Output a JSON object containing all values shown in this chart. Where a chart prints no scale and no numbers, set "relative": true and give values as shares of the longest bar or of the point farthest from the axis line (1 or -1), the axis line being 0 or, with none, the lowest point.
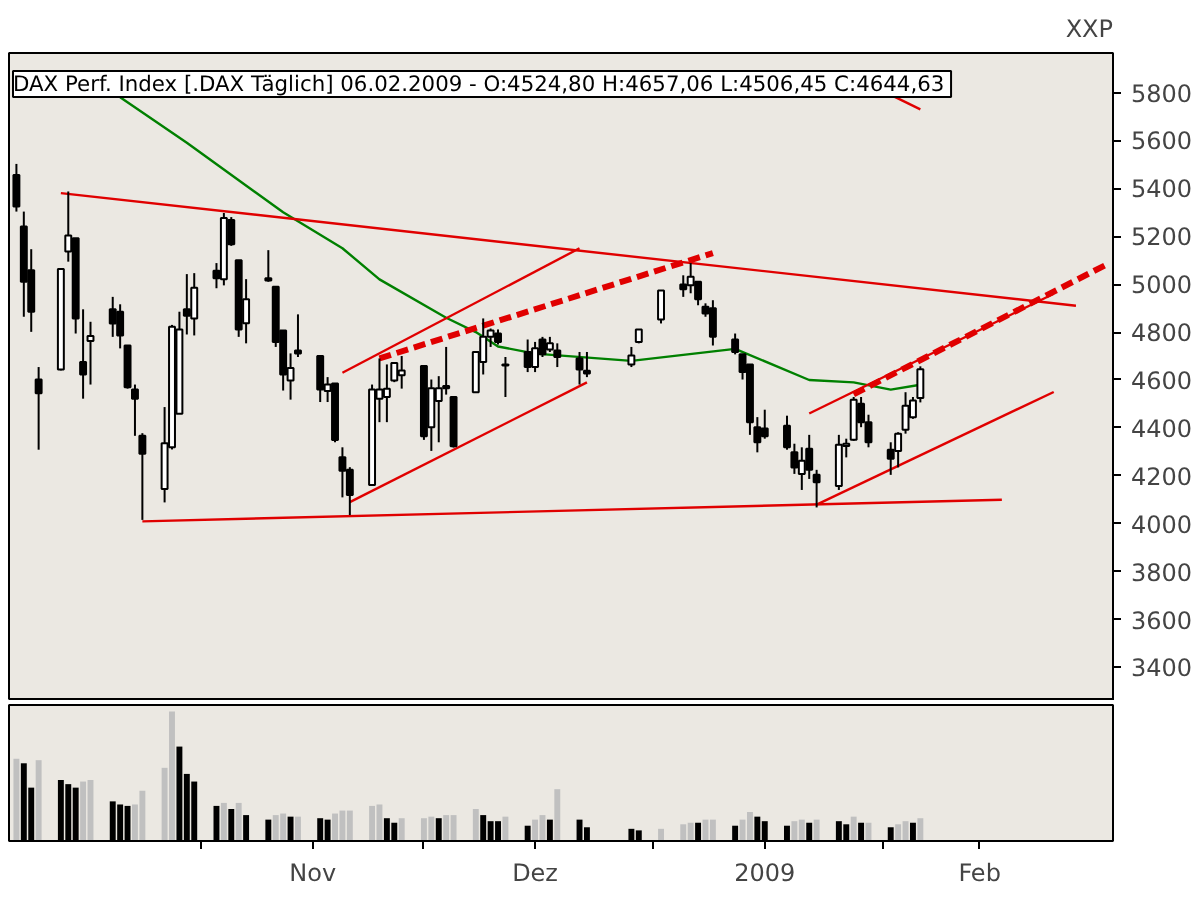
{
  "chart_data": [
    {
      "type": "candlestick",
      "title": "DAX Perf. Index [.DAX  Täglich] 06.02.2009 - O:4524,80 H:4657,06 L:4506,45 C:4644,63",
      "ylabel": "XXP",
      "x": [
        "2008-10-07",
        "2008-10-08",
        "2008-10-09",
        "2008-10-10",
        "2008-10-13",
        "2008-10-14",
        "2008-10-15",
        "2008-10-16",
        "2008-10-17",
        "2008-10-20",
        "2008-10-21",
        "2008-10-22",
        "2008-10-23",
        "2008-10-24",
        "2008-10-27",
        "2008-10-28",
        "2008-10-29",
        "2008-10-30",
        "2008-10-31",
        "2008-11-03",
        "2008-11-04",
        "2008-11-05",
        "2008-11-06",
        "2008-11-07",
        "2008-11-10",
        "2008-11-11",
        "2008-11-12",
        "2008-11-13",
        "2008-11-14",
        "2008-11-17",
        "2008-11-18",
        "2008-11-19",
        "2008-11-20",
        "2008-11-21",
        "2008-11-24",
        "2008-11-25",
        "2008-11-26",
        "2008-11-27",
        "2008-11-28",
        "2008-12-01",
        "2008-12-02",
        "2008-12-03",
        "2008-12-04",
        "2008-12-05",
        "2008-12-08",
        "2008-12-09",
        "2008-12-10",
        "2008-12-11",
        "2008-12-12",
        "2008-12-15",
        "2008-12-16",
        "2008-12-17",
        "2008-12-18",
        "2008-12-19",
        "2008-12-22",
        "2008-12-23",
        "2008-12-29",
        "2008-12-30",
        "2009-01-02",
        "2009-01-05",
        "2009-01-06",
        "2009-01-07",
        "2009-01-08",
        "2009-01-09",
        "2009-01-12",
        "2009-01-13",
        "2009-01-14",
        "2009-01-15",
        "2009-01-16",
        "2009-01-19",
        "2009-01-20",
        "2009-01-21",
        "2009-01-22",
        "2009-01-23",
        "2009-01-26",
        "2009-01-27",
        "2009-01-28",
        "2009-01-29",
        "2009-01-30",
        "2009-02-02",
        "2009-02-03",
        "2009-02-04",
        "2009-02-05",
        "2009-02-06"
      ],
      "ohlc": [
        [
          5456,
          5502,
          5303,
          5324
        ],
        [
          5241,
          5303,
          4864,
          5010
        ],
        [
          5058,
          5146,
          4801,
          4885
        ],
        [
          4602,
          4654,
          4309,
          4545
        ],
        [
          4644,
          5063,
          4640,
          5063
        ],
        [
          5136,
          5387,
          5094,
          5203
        ],
        [
          5192,
          5192,
          4794,
          4857
        ],
        [
          4675,
          4895,
          4522,
          4623
        ],
        [
          4763,
          4843,
          4581,
          4784
        ],
        [
          4895,
          4947,
          4780,
          4836
        ],
        [
          4885,
          4916,
          4732,
          4786
        ],
        [
          4744,
          4744,
          4564,
          4570
        ],
        [
          4560,
          4581,
          4367,
          4522
        ],
        [
          4367,
          4378,
          4016,
          4292
        ],
        [
          4145,
          4487,
          4089,
          4336
        ],
        [
          4319,
          4830,
          4310,
          4822
        ],
        [
          4459,
          4885,
          4459,
          4811
        ],
        [
          4895,
          5042,
          4790,
          4868
        ],
        [
          4857,
          5046,
          4786,
          4985
        ],
        [
          5056,
          5088,
          4983,
          5025
        ],
        [
          5021,
          5297,
          4995,
          5276
        ],
        [
          5268,
          5280,
          5160,
          5167
        ],
        [
          5100,
          5100,
          4780,
          4811
        ],
        [
          4837,
          5021,
          4753,
          4937
        ],
        [
          5025,
          5142,
          5010,
          5015
        ],
        [
          4989,
          4989,
          4738,
          4759
        ],
        [
          4807,
          4807,
          4556,
          4623
        ],
        [
          4598,
          4711,
          4518,
          4650
        ],
        [
          4723,
          4874,
          4696,
          4711
        ],
        [
          4700,
          4700,
          4508,
          4560
        ],
        [
          4554,
          4612,
          4508,
          4581
        ],
        [
          4585,
          4585,
          4340,
          4350
        ],
        [
          4277,
          4319,
          4110,
          4221
        ],
        [
          4225,
          4236,
          4036,
          4120
        ],
        [
          4162,
          4581,
          4162,
          4560
        ],
        [
          4522,
          4690,
          4424,
          4560
        ],
        [
          4529,
          4665,
          4424,
          4563
        ],
        [
          4598,
          4671,
          4591,
          4671
        ],
        [
          4620,
          4700,
          4564,
          4640
        ],
        [
          4658,
          4658,
          4350,
          4365
        ],
        [
          4403,
          4602,
          4304,
          4566
        ],
        [
          4512,
          4616,
          4340,
          4566
        ],
        [
          4575,
          4738,
          4539,
          4566
        ],
        [
          4529,
          4529,
          4318,
          4323
        ],
        [
          4549,
          4717,
          4549,
          4717
        ],
        [
          4675,
          4857,
          4623,
          4780
        ],
        [
          4780,
          4815,
          4738,
          4807
        ],
        [
          4794,
          4811,
          4748,
          4759
        ],
        [
          4665,
          4696,
          4529,
          4660
        ],
        [
          4717,
          4769,
          4633,
          4654
        ],
        [
          4654,
          4759,
          4633,
          4732
        ],
        [
          4769,
          4780,
          4696,
          4707
        ],
        [
          4727,
          4780,
          4717,
          4753
        ],
        [
          4723,
          4753,
          4654,
          4696
        ],
        [
          4690,
          4717,
          4581,
          4644
        ],
        [
          4639,
          4717,
          4612,
          4627
        ],
        [
          4665,
          4738,
          4654,
          4702
        ],
        [
          4759,
          4811,
          4753,
          4811
        ],
        [
          4853,
          4974,
          4836,
          4974
        ],
        [
          4999,
          5037,
          4947,
          4979
        ],
        [
          4995,
          5088,
          4962,
          5031
        ],
        [
          5010,
          5010,
          4912,
          4937
        ],
        [
          4906,
          4920,
          4864,
          4878
        ],
        [
          4899,
          4933,
          4744,
          4780
        ],
        [
          4769,
          4794,
          4707,
          4717
        ],
        [
          4707,
          4707,
          4602,
          4633
        ],
        [
          4665,
          4665,
          4371,
          4424
        ],
        [
          4403,
          4445,
          4298,
          4340
        ],
        [
          4397,
          4476,
          4355,
          4365
        ],
        [
          4409,
          4451,
          4309,
          4319
        ],
        [
          4298,
          4334,
          4208,
          4235
        ],
        [
          4208,
          4319,
          4141,
          4263
        ],
        [
          4313,
          4371,
          4187,
          4225
        ],
        [
          4204,
          4225,
          4068,
          4173
        ],
        [
          4158,
          4371,
          4141,
          4330
        ],
        [
          4324,
          4355,
          4277,
          4334
        ],
        [
          4351,
          4529,
          4346,
          4518
        ],
        [
          4501,
          4529,
          4403,
          4424
        ],
        [
          4424,
          4455,
          4319,
          4340
        ],
        [
          4309,
          4340,
          4204,
          4271
        ],
        [
          4304,
          4382,
          4235,
          4376
        ],
        [
          4392,
          4549,
          4376,
          4493
        ],
        [
          4445,
          4529,
          4438,
          4514
        ],
        [
          4524.8,
          4657.06,
          4506.45,
          4644.63
        ]
      ],
      "series": [
        {
          "type": "line",
          "color": "#008000",
          "x": [
            "2008-10-21",
            "2008-10-30",
            "2008-11-12",
            "2008-11-20",
            "2008-11-25",
            "2008-12-04",
            "2008-12-08",
            "2008-12-11",
            "2008-12-16",
            "2008-12-29",
            "2009-01-12",
            "2009-01-22",
            "2009-01-28",
            "2009-02-02",
            "2009-02-06"
          ],
          "values": [
            5780,
            5590,
            5300,
            5150,
            5020,
            4860,
            4800,
            4740,
            4710,
            4680,
            4730,
            4600,
            4590,
            4560,
            4580
          ]
        },
        {
          "type": "line",
          "color": "#e00000",
          "x": [
            "2008-10-13",
            "2009-02-27"
          ],
          "values": [
            5380,
            4910
          ]
        },
        {
          "type": "line",
          "color": "#e00000",
          "x": [
            "2009-02-02",
            "2009-02-06"
          ],
          "values": [
            5790,
            5730
          ]
        },
        {
          "type": "line",
          "color": "#e00000",
          "x": [
            "2008-10-24",
            "2009-02-17"
          ],
          "values": [
            4010,
            4100
          ]
        },
        {
          "type": "line",
          "color": "#e00000",
          "x": [
            "2008-11-20",
            "2008-12-22"
          ],
          "values": [
            4630,
            5150
          ]
        },
        {
          "type": "line",
          "color": "#e00000",
          "line_style": "dashed",
          "x": [
            "2008-11-25",
            "2009-01-09"
          ],
          "values": [
            4690,
            5130
          ]
        },
        {
          "type": "line",
          "color": "#e00000",
          "x": [
            "2008-11-21",
            "2008-12-23"
          ],
          "values": [
            4090,
            4590
          ]
        },
        {
          "type": "line",
          "color": "#e00000",
          "x": [
            "2009-01-22",
            "2009-02-24"
          ],
          "values": [
            4460,
            4960
          ]
        },
        {
          "type": "line",
          "color": "#e00000",
          "line_style": "dashed",
          "x": [
            "2009-01-28",
            "2009-03-03"
          ],
          "values": [
            4540,
            5080
          ]
        },
        {
          "type": "line",
          "color": "#e00000",
          "x": [
            "2009-01-23",
            "2009-02-24"
          ],
          "values": [
            4080,
            4550
          ]
        }
      ],
      "xlim": [
        "2008-10-06",
        "2009-03-04"
      ],
      "tick_labels": "y",
      "ylim": [
        3260,
        5965
      ],
      "yticks": [
        3400,
        3600,
        3800,
        4000,
        4200,
        4400,
        4600,
        4800,
        5000,
        5200,
        5400,
        5600,
        5800
      ],
      "grid": false
    },
    {
      "type": "bar",
      "relative": true,
      "xlim": [
        "2008-10-06",
        "2009-03-04"
      ],
      "xticks": [
        {
          "value": "2008-11-01",
          "label": null
        },
        {
          "value": "2008-11-16",
          "label": "Nov"
        },
        {
          "value": "2008-12-01",
          "label": null
        },
        {
          "value": "2008-12-16",
          "label": "Dez"
        },
        {
          "value": "2009-01-01",
          "label": null
        },
        {
          "value": "2009-01-16",
          "label": "2009"
        },
        {
          "value": "2009-02-01",
          "label": null
        },
        {
          "value": "2009-02-14",
          "label": "Feb"
        }
      ],
      "x": [
        "2008-10-07",
        "2008-10-08",
        "2008-10-09",
        "2008-10-10",
        "2008-10-13",
        "2008-10-14",
        "2008-10-15",
        "2008-10-16",
        "2008-10-17",
        "2008-10-20",
        "2008-10-21",
        "2008-10-22",
        "2008-10-23",
        "2008-10-24",
        "2008-10-27",
        "2008-10-28",
        "2008-10-29",
        "2008-10-30",
        "2008-10-31",
        "2008-11-03",
        "2008-11-04",
        "2008-11-05",
        "2008-11-06",
        "2008-11-07",
        "2008-11-10",
        "2008-11-11",
        "2008-11-12",
        "2008-11-13",
        "2008-11-14",
        "2008-11-17",
        "2008-11-18",
        "2008-11-19",
        "2008-11-20",
        "2008-11-21",
        "2008-11-24",
        "2008-11-25",
        "2008-11-26",
        "2008-11-27",
        "2008-11-28",
        "2008-12-01",
        "2008-12-02",
        "2008-12-03",
        "2008-12-04",
        "2008-12-05",
        "2008-12-08",
        "2008-12-09",
        "2008-12-10",
        "2008-12-11",
        "2008-12-12",
        "2008-12-15",
        "2008-12-16",
        "2008-12-17",
        "2008-12-18",
        "2008-12-19",
        "2008-12-22",
        "2008-12-23",
        "2008-12-29",
        "2008-12-30",
        "2009-01-02",
        "2009-01-05",
        "2009-01-06",
        "2009-01-07",
        "2009-01-08",
        "2009-01-09",
        "2009-01-12",
        "2009-01-13",
        "2009-01-14",
        "2009-01-15",
        "2009-01-16",
        "2009-01-19",
        "2009-01-20",
        "2009-01-21",
        "2009-01-22",
        "2009-01-23",
        "2009-01-26",
        "2009-01-27",
        "2009-01-28",
        "2009-01-29",
        "2009-01-30",
        "2009-02-02",
        "2009-02-03",
        "2009-02-04",
        "2009-02-05",
        "2009-02-06"
      ],
      "values": [
        0.635,
        0.6,
        0.412,
        0.624,
        0.471,
        0.439,
        0.412,
        0.459,
        0.471,
        0.306,
        0.282,
        0.271,
        0.282,
        0.388,
        0.565,
        1,
        0.729,
        0.518,
        0.459,
        0.271,
        0.294,
        0.247,
        0.294,
        0.2,
        0.165,
        0.2,
        0.212,
        0.188,
        0.188,
        0.176,
        0.165,
        0.212,
        0.235,
        0.235,
        0.271,
        0.282,
        0.176,
        0.141,
        0.176,
        0.176,
        0.188,
        0.176,
        0.2,
        0.2,
        0.247,
        0.2,
        0.153,
        0.153,
        0.188,
        0.118,
        0.165,
        0.2,
        0.165,
        0.4,
        0.165,
        0.106,
        0.094,
        0.082,
        0.094,
        0.129,
        0.141,
        0.141,
        0.165,
        0.165,
        0.118,
        0.165,
        0.224,
        0.188,
        0.153,
        0.118,
        0.153,
        0.165,
        0.141,
        0.165,
        0.153,
        0.129,
        0.188,
        0.141,
        0.141,
        0.106,
        0.129,
        0.153,
        0.141,
        0.176
      ],
      "colors": [
        "#c0c0c0",
        "#000000",
        "#000000",
        "#c0c0c0",
        "#000000",
        "#000000",
        "#000000",
        "#c0c0c0",
        "#c0c0c0",
        "#000000",
        "#000000",
        "#000000",
        "#c0c0c0",
        "#c0c0c0",
        "#c0c0c0",
        "#c0c0c0",
        "#000000",
        "#000000",
        "#000000",
        "#000000",
        "#c0c0c0",
        "#000000",
        "#c0c0c0",
        "#000000",
        "#000000",
        "#c0c0c0",
        "#c0c0c0",
        "#000000",
        "#c0c0c0",
        "#000000",
        "#000000",
        "#c0c0c0",
        "#c0c0c0",
        "#c0c0c0",
        "#c0c0c0",
        "#c0c0c0",
        "#000000",
        "#000000",
        "#c0c0c0",
        "#c0c0c0",
        "#c0c0c0",
        "#000000",
        "#c0c0c0",
        "#c0c0c0",
        "#c0c0c0",
        "#000000",
        "#000000",
        "#000000",
        "#c0c0c0",
        "#000000",
        "#c0c0c0",
        "#c0c0c0",
        "#000000",
        "#c0c0c0",
        "#000000",
        "#000000",
        "#000000",
        "#000000",
        "#c0c0c0",
        "#c0c0c0",
        "#c0c0c0",
        "#000000",
        "#c0c0c0",
        "#c0c0c0",
        "#000000",
        "#c0c0c0",
        "#c0c0c0",
        "#000000",
        "#000000",
        "#000000",
        "#c0c0c0",
        "#c0c0c0",
        "#000000",
        "#c0c0c0",
        "#000000",
        "#000000",
        "#c0c0c0",
        "#000000",
        "#c0c0c0",
        "#000000",
        "#c0c0c0",
        "#c0c0c0",
        "#000000",
        "#c0c0c0"
      ]
    }
  ]
}
